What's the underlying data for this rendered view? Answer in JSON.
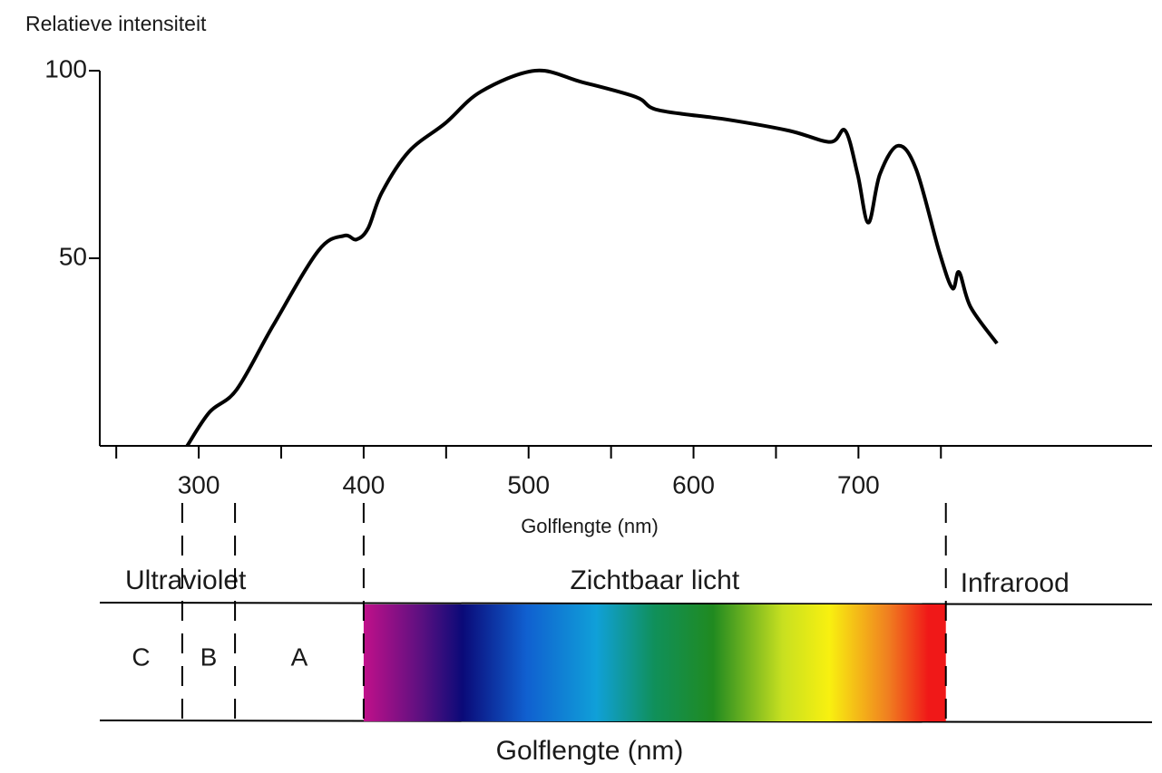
{
  "chart_data": {
    "type": "line",
    "y_label": "Relatieve intensiteit",
    "x_label": "Golflengte (nm)",
    "color": "#000000",
    "x": [
      293,
      306.6,
      323,
      345,
      372.5,
      388,
      395.6,
      402.7,
      411,
      427.5,
      449.5,
      471,
      504,
      532,
      565,
      578.6,
      620,
      658,
      683,
      692,
      699.5,
      706,
      713,
      724,
      735,
      749,
      757,
      761,
      768,
      784
    ],
    "values": [
      0,
      9,
      15,
      32,
      52,
      56,
      55,
      58,
      67.5,
      78.5,
      86,
      94.4,
      100,
      97,
      93,
      89.5,
      87,
      84,
      81,
      84,
      72.4,
      59.5,
      72.4,
      80,
      73.7,
      51.7,
      42,
      46.3,
      37,
      27.3
    ],
    "xlim": [
      240,
      878
    ],
    "xticks": [
      300,
      400,
      500,
      600,
      700
    ],
    "xminor_ticks": [
      250,
      350,
      450,
      550,
      650,
      750
    ],
    "ylim": [
      0,
      100
    ],
    "yticks": [
      50,
      100
    ]
  },
  "spectrum": {
    "boundaries": [
      290,
      322,
      400,
      753
    ],
    "region_labels": [
      "Ultraviolet",
      "Zichtbaar licht",
      "Infrarood"
    ],
    "uv_bands": [
      "C",
      "B",
      "A"
    ],
    "x_label": "Golflengte (nm)"
  }
}
